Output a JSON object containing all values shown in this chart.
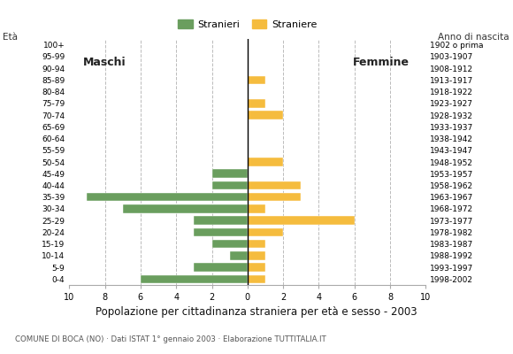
{
  "age_groups": [
    "100+",
    "95-99",
    "90-94",
    "85-89",
    "80-84",
    "75-79",
    "70-74",
    "65-69",
    "60-64",
    "55-59",
    "50-54",
    "45-49",
    "40-44",
    "35-39",
    "30-34",
    "25-29",
    "20-24",
    "15-19",
    "10-14",
    "5-9",
    "0-4"
  ],
  "birth_years": [
    "1902 o prima",
    "1903-1907",
    "1908-1912",
    "1913-1917",
    "1918-1922",
    "1923-1927",
    "1928-1932",
    "1933-1937",
    "1938-1942",
    "1943-1947",
    "1948-1952",
    "1953-1957",
    "1958-1962",
    "1963-1967",
    "1968-1972",
    "1973-1977",
    "1978-1982",
    "1983-1987",
    "1988-1992",
    "1993-1997",
    "1998-2002"
  ],
  "males": [
    0,
    0,
    0,
    0,
    0,
    0,
    0,
    0,
    0,
    0,
    0,
    2,
    2,
    9,
    7,
    3,
    3,
    2,
    1,
    3,
    6
  ],
  "females": [
    0,
    0,
    0,
    1,
    0,
    1,
    2,
    0,
    0,
    0,
    2,
    0,
    3,
    3,
    1,
    6,
    2,
    1,
    1,
    1,
    1
  ],
  "color_male": "#6a9e5e",
  "color_female": "#f5bc3e",
  "title": "Popolazione per cittadinanza straniera per età e sesso - 2003",
  "subtitle": "COMUNE DI BOCA (NO) · Dati ISTAT 1° gennaio 2003 · Elaborazione TUTTITALIA.IT",
  "label_eta": "Età",
  "label_anno": "Anno di nascita",
  "label_maschi": "Maschi",
  "label_femmine": "Femmine",
  "legend_stranieri": "Stranieri",
  "legend_straniere": "Straniere",
  "xlim": 10,
  "bg": "#ffffff",
  "grid_color": "#bbbbbb",
  "grid_values": [
    2,
    4,
    6,
    8
  ]
}
